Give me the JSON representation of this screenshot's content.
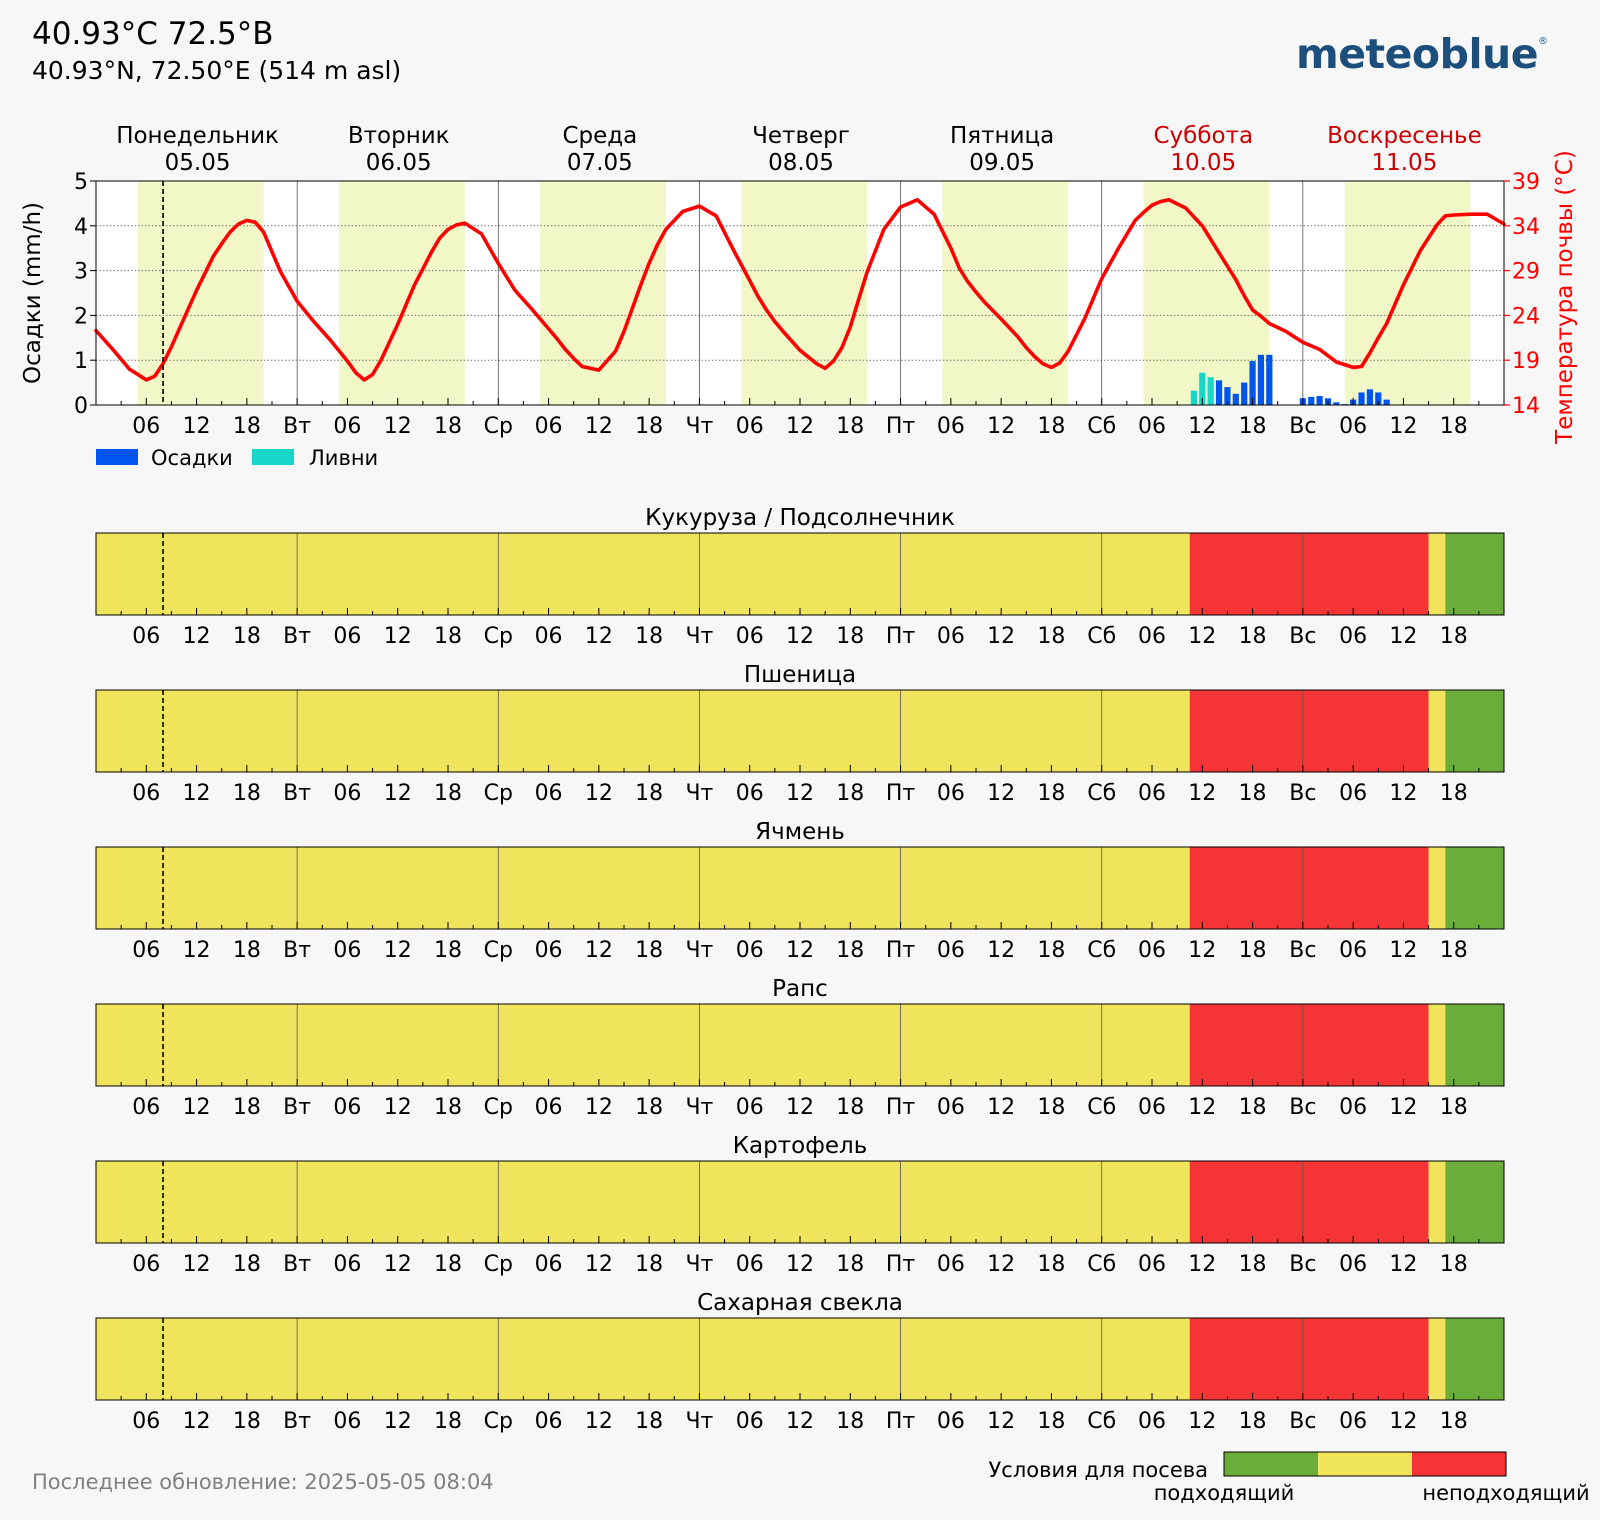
{
  "header": {
    "title": "40.93°C 72.5°B",
    "subtitle": "40.93°N, 72.50°E (514 m asl)",
    "logo": "meteoblue",
    "logo_mark": "®"
  },
  "footer": {
    "last_update": "Последнее обновление: 2025-05-05 08:04"
  },
  "colors": {
    "temperature": "#ff0000",
    "precipitation": "#0055ee",
    "showers": "#18d6c8",
    "suitable": "#6aad3a",
    "medium": "#f0e45c",
    "unsuitable": "#f53535",
    "day_shade": "#f1f7c6",
    "weekend_label": "#cc0000"
  },
  "days": [
    {
      "name": "Понедельник",
      "date": "05.05",
      "weekend": false
    },
    {
      "name": "Вторник",
      "date": "06.05",
      "weekend": false
    },
    {
      "name": "Среда",
      "date": "07.05",
      "weekend": false
    },
    {
      "name": "Четверг",
      "date": "08.05",
      "weekend": false
    },
    {
      "name": "Пятница",
      "date": "09.05",
      "weekend": false
    },
    {
      "name": "Суббота",
      "date": "10.05",
      "weekend": true
    },
    {
      "name": "Воскресенье",
      "date": "11.05",
      "weekend": true
    }
  ],
  "axis_ticks": [
    "06",
    "12",
    "18",
    "Вт",
    "06",
    "12",
    "18",
    "Ср",
    "06",
    "12",
    "18",
    "Чт",
    "06",
    "12",
    "18",
    "Пт",
    "06",
    "12",
    "18",
    "Сб",
    "06",
    "12",
    "18",
    "Вс",
    "06",
    "12",
    "18"
  ],
  "legend": {
    "precipitation": "Осадки",
    "showers": "Ливни"
  },
  "sowing_legend": {
    "title": "Условия для посева",
    "suitable": "подходящий",
    "unsuitable": "неподходящий"
  },
  "chart_data": [
    {
      "type": "line",
      "ylabel_left": "Осадки (mm/h)",
      "ylabel_right": "Температура почвы (°C)",
      "ylim_left": [
        0,
        5
      ],
      "yticks_left": [
        "0",
        "1",
        "2",
        "3",
        "4",
        "5"
      ],
      "ylim_right": [
        14,
        39
      ],
      "yticks_right": [
        "14",
        "19",
        "24",
        "29",
        "34",
        "39"
      ],
      "x_unit": "hours since 2025-05-05 00:00",
      "current_time_hour": 8,
      "daylight_hours": [
        [
          5,
          20
        ],
        [
          29,
          44
        ],
        [
          53,
          68
        ],
        [
          77,
          92
        ],
        [
          101,
          116
        ],
        [
          125,
          140
        ],
        [
          149,
          164
        ]
      ],
      "series": [
        {
          "name": "Температура почвы (°C)",
          "axis": "right",
          "x": [
            0,
            2,
            4,
            6,
            7,
            8,
            9,
            10,
            12,
            14,
            15,
            16,
            17,
            18,
            19,
            20,
            22,
            24,
            26,
            28,
            30,
            31,
            32,
            33,
            34,
            36,
            38,
            39,
            40,
            41,
            42,
            43,
            44,
            46,
            48,
            50,
            52,
            54,
            55,
            56,
            57,
            58,
            60,
            62,
            63,
            64,
            65,
            66,
            67,
            68,
            70,
            72,
            74,
            76,
            78,
            79,
            80,
            81,
            82,
            84,
            86,
            87,
            88,
            89,
            90,
            91,
            92,
            94,
            96,
            98,
            100,
            102,
            103,
            104,
            105,
            106,
            108,
            110,
            111,
            112,
            113,
            114,
            115,
            116,
            118,
            120,
            122,
            124,
            125,
            126,
            127,
            128,
            130,
            132,
            134,
            136,
            137,
            138,
            139,
            140,
            142,
            144,
            146,
            148,
            150,
            151,
            152,
            153,
            154,
            156,
            157,
            158,
            160,
            161,
            162,
            164,
            166,
            168
          ],
          "y": [
            22.3,
            20.2,
            18.0,
            16.8,
            17.2,
            18.6,
            20.5,
            22.6,
            26.8,
            30.6,
            32.0,
            33.3,
            34.2,
            34.6,
            34.4,
            33.3,
            28.9,
            25.6,
            23.3,
            21.2,
            18.9,
            17.6,
            16.8,
            17.4,
            19.0,
            23.0,
            27.4,
            29.2,
            31.0,
            32.6,
            33.6,
            34.1,
            34.3,
            33.1,
            29.8,
            26.8,
            24.7,
            22.5,
            21.4,
            20.2,
            19.2,
            18.3,
            17.9,
            20.0,
            22.2,
            24.8,
            27.4,
            29.8,
            31.9,
            33.6,
            35.6,
            36.2,
            35.1,
            31.4,
            27.9,
            26.1,
            24.6,
            23.3,
            22.2,
            20.1,
            18.6,
            18.1,
            18.9,
            20.4,
            22.7,
            25.8,
            28.8,
            33.6,
            36.1,
            36.9,
            35.3,
            31.5,
            29.3,
            27.8,
            26.6,
            25.5,
            23.6,
            21.6,
            20.4,
            19.4,
            18.6,
            18.2,
            18.7,
            20.0,
            23.7,
            28.1,
            31.5,
            34.6,
            35.5,
            36.3,
            36.7,
            36.9,
            36.0,
            34.0,
            31.0,
            28.0,
            26.2,
            24.6,
            23.9,
            23.1,
            22.2,
            21.0,
            20.2,
            18.8,
            18.2,
            18.3,
            19.8,
            21.5,
            23.1,
            27.4,
            29.3,
            31.2,
            34.1,
            35.1,
            35.2,
            35.3,
            35.3,
            34.2
          ]
        },
        {
          "name": "Осадки",
          "axis": "left",
          "x": [
            131,
            132,
            133,
            134,
            135,
            136,
            137,
            138,
            139,
            140,
            144,
            145,
            146,
            147,
            148,
            149,
            150,
            151,
            152,
            153,
            154
          ],
          "y": [
            0.0,
            0.0,
            0.0,
            0.55,
            0.4,
            0.25,
            0.5,
            0.98,
            1.12,
            1.12,
            0.15,
            0.18,
            0.2,
            0.15,
            0.06,
            0.02,
            0.12,
            0.28,
            0.35,
            0.28,
            0.12
          ]
        },
        {
          "name": "Ливни",
          "axis": "left",
          "x": [
            131,
            132,
            133,
            134
          ],
          "y": [
            0.32,
            0.72,
            0.62,
            0.06
          ]
        }
      ]
    },
    {
      "type": "heatmap",
      "title": "Кукуруза / Подсолнечник",
      "x_unit": "hours since 2025-05-05 00:00",
      "segments": [
        {
          "from": 0,
          "to": 130.5,
          "class": "medium"
        },
        {
          "from": 130.5,
          "to": 159,
          "class": "unsuitable"
        },
        {
          "from": 159,
          "to": 161,
          "class": "medium"
        },
        {
          "from": 161,
          "to": 168,
          "class": "suitable"
        }
      ]
    },
    {
      "type": "heatmap",
      "title": "Пшеница",
      "x_unit": "hours since 2025-05-05 00:00",
      "segments": [
        {
          "from": 0,
          "to": 130.5,
          "class": "medium"
        },
        {
          "from": 130.5,
          "to": 159,
          "class": "unsuitable"
        },
        {
          "from": 159,
          "to": 161,
          "class": "medium"
        },
        {
          "from": 161,
          "to": 168,
          "class": "suitable"
        }
      ]
    },
    {
      "type": "heatmap",
      "title": "Ячмень",
      "x_unit": "hours since 2025-05-05 00:00",
      "segments": [
        {
          "from": 0,
          "to": 130.5,
          "class": "medium"
        },
        {
          "from": 130.5,
          "to": 159,
          "class": "unsuitable"
        },
        {
          "from": 159,
          "to": 161,
          "class": "medium"
        },
        {
          "from": 161,
          "to": 168,
          "class": "suitable"
        }
      ]
    },
    {
      "type": "heatmap",
      "title": "Рапс",
      "x_unit": "hours since 2025-05-05 00:00",
      "segments": [
        {
          "from": 0,
          "to": 130.5,
          "class": "medium"
        },
        {
          "from": 130.5,
          "to": 159,
          "class": "unsuitable"
        },
        {
          "from": 159,
          "to": 161,
          "class": "medium"
        },
        {
          "from": 161,
          "to": 168,
          "class": "suitable"
        }
      ]
    },
    {
      "type": "heatmap",
      "title": "Картофель",
      "x_unit": "hours since 2025-05-05 00:00",
      "segments": [
        {
          "from": 0,
          "to": 130.5,
          "class": "medium"
        },
        {
          "from": 130.5,
          "to": 159,
          "class": "unsuitable"
        },
        {
          "from": 159,
          "to": 161,
          "class": "medium"
        },
        {
          "from": 161,
          "to": 168,
          "class": "suitable"
        }
      ]
    },
    {
      "type": "heatmap",
      "title": "Сахарная свекла",
      "x_unit": "hours since 2025-05-05 00:00",
      "segments": [
        {
          "from": 0,
          "to": 130.5,
          "class": "medium"
        },
        {
          "from": 130.5,
          "to": 159,
          "class": "unsuitable"
        },
        {
          "from": 159,
          "to": 161,
          "class": "medium"
        },
        {
          "from": 161,
          "to": 168,
          "class": "suitable"
        }
      ]
    }
  ]
}
